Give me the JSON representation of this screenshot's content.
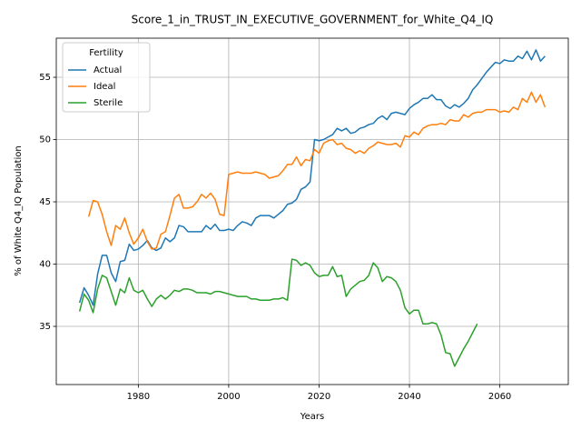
{
  "chart_data": {
    "type": "line",
    "title": "Score_1_in_TRUST_IN_EXECUTIVE_GOVERNMENT_for_White_Q4_IQ",
    "xlabel": "Years",
    "ylabel": "% of White Q4_IQ Population",
    "legend_title": "Fertility",
    "legend": "upper left",
    "grid": true,
    "xlim": [
      1961.85,
      2075.15
    ],
    "xticks": [
      1980,
      2000,
      2020,
      2040,
      2060
    ],
    "ylim": [
      30.33,
      58.14
    ],
    "yticks": [
      35,
      40,
      45,
      50,
      55
    ],
    "series": [
      {
        "name": "Actual",
        "color": "#1f77b4",
        "x": [
          1967,
          1968,
          1969,
          1970,
          1971,
          1972,
          1973,
          1974,
          1975,
          1976,
          1977,
          1978,
          1979,
          1980,
          1981,
          1982,
          1983,
          1984,
          1985,
          1986,
          1987,
          1988,
          1989,
          1990,
          1991,
          1992,
          1993,
          1994,
          1995,
          1996,
          1997,
          1998,
          1999,
          2000,
          2001,
          2002,
          2003,
          2004,
          2005,
          2006,
          2007,
          2008,
          2009,
          2010,
          2011,
          2012,
          2013,
          2014,
          2015,
          2016,
          2017,
          2018,
          2019,
          2020,
          2021,
          2022,
          2023,
          2024,
          2025,
          2026,
          2027,
          2028,
          2029,
          2030,
          2031,
          2032,
          2033,
          2034,
          2035,
          2036,
          2037,
          2038,
          2039,
          2040,
          2041,
          2042,
          2043,
          2044,
          2045,
          2046,
          2047,
          2048,
          2049,
          2050,
          2051,
          2052,
          2053,
          2054,
          2055,
          2056,
          2057,
          2058,
          2059,
          2060,
          2061,
          2062,
          2063,
          2064,
          2065,
          2066,
          2067,
          2068,
          2069,
          2070
        ],
        "values": [
          36.9,
          38.1,
          37.5,
          36.7,
          39.2,
          40.7,
          40.7,
          39.3,
          38.6,
          40.2,
          40.3,
          41.6,
          41.1,
          41.2,
          41.5,
          41.9,
          41.3,
          41.1,
          41.3,
          42.1,
          41.8,
          42.1,
          43.1,
          43.0,
          42.6,
          42.6,
          42.6,
          42.6,
          43.1,
          42.8,
          43.2,
          42.7,
          42.7,
          42.8,
          42.7,
          43.1,
          43.4,
          43.3,
          43.1,
          43.7,
          43.9,
          43.9,
          43.9,
          43.7,
          44.0,
          44.3,
          44.8,
          44.9,
          45.2,
          46.0,
          46.2,
          46.6,
          50.0,
          49.9,
          50.0,
          50.2,
          50.4,
          50.9,
          50.7,
          50.9,
          50.5,
          50.6,
          50.9,
          51.0,
          51.2,
          51.3,
          51.7,
          51.9,
          51.6,
          52.1,
          52.2,
          52.1,
          52.0,
          52.5,
          52.8,
          53.0,
          53.3,
          53.3,
          53.6,
          53.2,
          53.2,
          52.7,
          52.5,
          52.8,
          52.6,
          52.9,
          53.3,
          54.0,
          54.4,
          54.9,
          55.4,
          55.8,
          56.2,
          56.1,
          56.4,
          56.3,
          56.3,
          56.7,
          56.5,
          57.1,
          56.4,
          57.2,
          56.3,
          56.7
        ]
      },
      {
        "name": "Ideal",
        "color": "#ff7f0e",
        "x": [
          1969,
          1970,
          1971,
          1972,
          1973,
          1974,
          1975,
          1976,
          1977,
          1978,
          1979,
          1980,
          1981,
          1982,
          1983,
          1984,
          1985,
          1986,
          1987,
          1988,
          1989,
          1990,
          1991,
          1992,
          1993,
          1994,
          1995,
          1996,
          1997,
          1998,
          1999,
          2000,
          2001,
          2002,
          2003,
          2004,
          2005,
          2006,
          2007,
          2008,
          2009,
          2010,
          2011,
          2012,
          2013,
          2014,
          2015,
          2016,
          2017,
          2018,
          2019,
          2020,
          2021,
          2022,
          2023,
          2024,
          2025,
          2026,
          2027,
          2028,
          2029,
          2030,
          2031,
          2032,
          2033,
          2034,
          2035,
          2036,
          2037,
          2038,
          2039,
          2040,
          2041,
          2042,
          2043,
          2044,
          2045,
          2046,
          2047,
          2048,
          2049,
          2050,
          2051,
          2052,
          2053,
          2054,
          2055,
          2056,
          2057,
          2058,
          2059,
          2060,
          2061,
          2062,
          2063,
          2064,
          2065,
          2066,
          2067,
          2068,
          2069,
          2070
        ],
        "values": [
          43.8,
          45.1,
          45.0,
          44.0,
          42.6,
          41.5,
          43.1,
          42.8,
          43.7,
          42.5,
          41.6,
          42.1,
          42.8,
          41.8,
          41.2,
          41.3,
          42.4,
          42.6,
          43.9,
          45.3,
          45.6,
          44.5,
          44.5,
          44.6,
          45.0,
          45.6,
          45.3,
          45.7,
          45.2,
          44.0,
          43.9,
          47.2,
          47.3,
          47.4,
          47.3,
          47.3,
          47.3,
          47.4,
          47.3,
          47.2,
          46.9,
          47.0,
          47.1,
          47.5,
          48.0,
          48.0,
          48.6,
          47.9,
          48.4,
          48.3,
          49.2,
          48.9,
          49.7,
          49.9,
          50.0,
          49.6,
          49.7,
          49.3,
          49.2,
          48.9,
          49.1,
          48.9,
          49.3,
          49.5,
          49.8,
          49.7,
          49.6,
          49.6,
          49.7,
          49.4,
          50.3,
          50.2,
          50.6,
          50.4,
          50.9,
          51.1,
          51.2,
          51.2,
          51.3,
          51.2,
          51.6,
          51.5,
          51.5,
          52.0,
          51.8,
          52.1,
          52.2,
          52.2,
          52.4,
          52.4,
          52.4,
          52.2,
          52.3,
          52.2,
          52.6,
          52.4,
          53.3,
          53.0,
          53.8,
          53.0,
          53.6,
          52.6
        ]
      },
      {
        "name": "Sterile",
        "color": "#2ca02c",
        "x": [
          1967,
          1968,
          1969,
          1970,
          1971,
          1972,
          1973,
          1974,
          1975,
          1976,
          1977,
          1978,
          1979,
          1980,
          1981,
          1982,
          1983,
          1984,
          1985,
          1986,
          1987,
          1988,
          1989,
          1990,
          1991,
          1992,
          1993,
          1994,
          1995,
          1996,
          1997,
          1998,
          1999,
          2000,
          2001,
          2002,
          2003,
          2004,
          2005,
          2006,
          2007,
          2008,
          2009,
          2010,
          2011,
          2012,
          2013,
          2014,
          2015,
          2016,
          2017,
          2018,
          2019,
          2020,
          2021,
          2022,
          2023,
          2024,
          2025,
          2026,
          2027,
          2028,
          2029,
          2030,
          2031,
          2032,
          2033,
          2034,
          2035,
          2036,
          2037,
          2038,
          2039,
          2040,
          2041,
          2042,
          2043,
          2044,
          2045,
          2046,
          2047,
          2048,
          2049,
          2050,
          2051,
          2052,
          2053,
          2054,
          2055
        ],
        "values": [
          36.2,
          37.6,
          37.1,
          36.1,
          38.0,
          39.1,
          38.9,
          37.8,
          36.7,
          38.0,
          37.7,
          38.9,
          37.9,
          37.7,
          37.9,
          37.2,
          36.6,
          37.2,
          37.5,
          37.2,
          37.5,
          37.9,
          37.8,
          38.0,
          38.0,
          37.9,
          37.7,
          37.7,
          37.7,
          37.6,
          37.8,
          37.8,
          37.7,
          37.6,
          37.5,
          37.4,
          37.4,
          37.4,
          37.2,
          37.2,
          37.1,
          37.1,
          37.1,
          37.2,
          37.2,
          37.3,
          37.1,
          40.4,
          40.3,
          39.9,
          40.1,
          39.9,
          39.3,
          39.0,
          39.1,
          39.1,
          39.8,
          39.0,
          39.1,
          37.4,
          38.0,
          38.3,
          38.6,
          38.7,
          39.1,
          40.1,
          39.7,
          38.6,
          39.0,
          38.9,
          38.6,
          37.9,
          36.5,
          36.0,
          36.3,
          36.3,
          35.2,
          35.2,
          35.3,
          35.2,
          34.3,
          32.9,
          32.8,
          31.8,
          32.5,
          33.2,
          33.8,
          34.5,
          35.2
        ]
      }
    ]
  }
}
